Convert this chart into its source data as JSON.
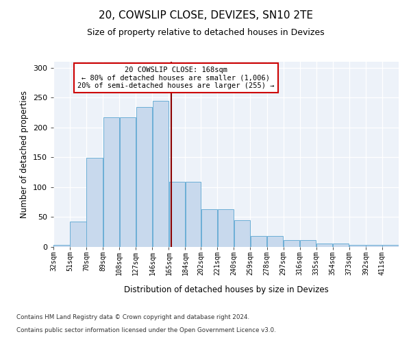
{
  "title1": "20, COWSLIP CLOSE, DEVIZES, SN10 2TE",
  "title2": "Size of property relative to detached houses in Devizes",
  "xlabel": "Distribution of detached houses by size in Devizes",
  "ylabel": "Number of detached properties",
  "bin_labels": [
    "32sqm",
    "51sqm",
    "70sqm",
    "89sqm",
    "108sqm",
    "127sqm",
    "146sqm",
    "165sqm",
    "184sqm",
    "202sqm",
    "221sqm",
    "240sqm",
    "259sqm",
    "278sqm",
    "297sqm",
    "316sqm",
    "335sqm",
    "354sqm",
    "373sqm",
    "392sqm",
    "411sqm"
  ],
  "bar_heights": [
    4,
    43,
    149,
    217,
    217,
    234,
    245,
    109,
    109,
    63,
    63,
    45,
    18,
    18,
    12,
    12,
    6,
    6,
    3,
    3,
    3
  ],
  "bar_color": "#c8d9ed",
  "bar_edge_color": "#6baed6",
  "vline_color": "#8b0000",
  "annotation_line1": "20 COWSLIP CLOSE: 168sqm",
  "annotation_line2": "← 80% of detached houses are smaller (1,006)",
  "annotation_line3": "20% of semi-detached houses are larger (255) →",
  "annotation_box_color": "#ffffff",
  "annotation_box_edge": "#cc0000",
  "footer1": "Contains HM Land Registry data © Crown copyright and database right 2024.",
  "footer2": "Contains public sector information licensed under the Open Government Licence v3.0.",
  "ylim": [
    0,
    310
  ],
  "bin_edges": [
    32,
    51,
    70,
    89,
    108,
    127,
    146,
    165,
    184,
    202,
    221,
    240,
    259,
    278,
    297,
    316,
    335,
    354,
    373,
    392,
    411,
    430
  ],
  "vline_x": 168,
  "background_color": "#edf2f9"
}
